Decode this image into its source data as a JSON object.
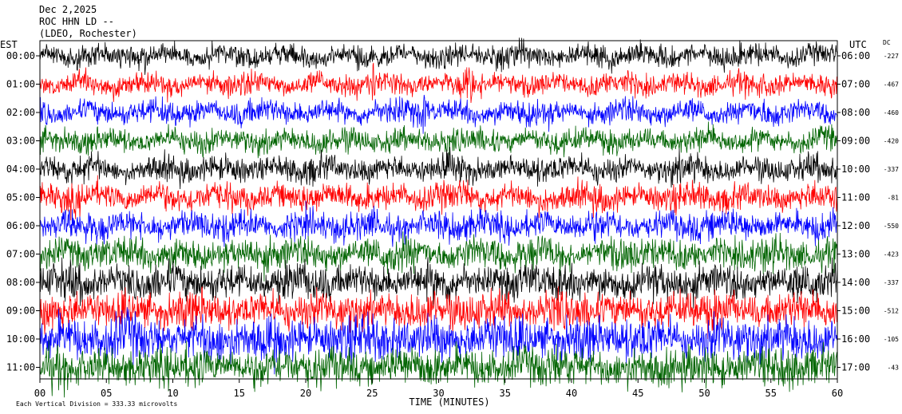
{
  "header": {
    "date": "Dec 2,2025",
    "station": "ROC HHN LD --",
    "network": "(LDEO, Rochester)"
  },
  "left_axis_title": "EST",
  "right_axis_title": "UTC",
  "dc_title": "DC",
  "footer": {
    "scale_note": "Each Vertical Division =  333.33 microvolts"
  },
  "colors": {
    "trace_cycle": [
      "#000000",
      "#ff0000",
      "#0000ff",
      "#006400"
    ],
    "frame": "#000000",
    "background": "#ffffff"
  },
  "chart_data": {
    "type": "line",
    "subtype": "helicorder seismogram",
    "xlabel": "TIME (MINUTES)",
    "x_ticks": [
      "00",
      "05",
      "10",
      "15",
      "20",
      "25",
      "30",
      "35",
      "40",
      "45",
      "50",
      "55",
      "60"
    ],
    "xlim": [
      0,
      60
    ],
    "rows": [
      {
        "est": "00:00",
        "utc": "06:00",
        "dc": "-227",
        "color": "#000000",
        "noise": 0.35,
        "events": []
      },
      {
        "est": "01:00",
        "utc": "07:00",
        "dc": "-467",
        "color": "#ff0000",
        "noise": 0.35,
        "events": [
          25,
          32.3
        ]
      },
      {
        "est": "02:00",
        "utc": "08:00",
        "dc": "-460",
        "color": "#0000ff",
        "noise": 0.4,
        "events": [
          29
        ]
      },
      {
        "est": "03:00",
        "utc": "09:00",
        "dc": "-420",
        "color": "#006400",
        "noise": 0.4,
        "events": []
      },
      {
        "est": "04:00",
        "utc": "10:00",
        "dc": "-337",
        "color": "#000000",
        "noise": 0.45,
        "events": [
          31.5
        ]
      },
      {
        "est": "05:00",
        "utc": "11:00",
        "dc": "-81",
        "color": "#ff0000",
        "noise": 0.5,
        "events": []
      },
      {
        "est": "06:00",
        "utc": "12:00",
        "dc": "-550",
        "color": "#0000ff",
        "noise": 0.55,
        "events": []
      },
      {
        "est": "07:00",
        "utc": "13:00",
        "dc": "-423",
        "color": "#006400",
        "noise": 0.65,
        "events": []
      },
      {
        "est": "08:00",
        "utc": "14:00",
        "dc": "-337",
        "color": "#000000",
        "noise": 0.75,
        "events": []
      },
      {
        "est": "09:00",
        "utc": "15:00",
        "dc": "-512",
        "color": "#ff0000",
        "noise": 0.8,
        "events": []
      },
      {
        "est": "10:00",
        "utc": "16:00",
        "dc": "-105",
        "color": "#0000ff",
        "noise": 1.0,
        "events": [
          17.5,
          25.5
        ]
      },
      {
        "est": "11:00",
        "utc": "17:00",
        "dc": "-43",
        "color": "#006400",
        "noise": 0.85,
        "events": []
      }
    ]
  }
}
